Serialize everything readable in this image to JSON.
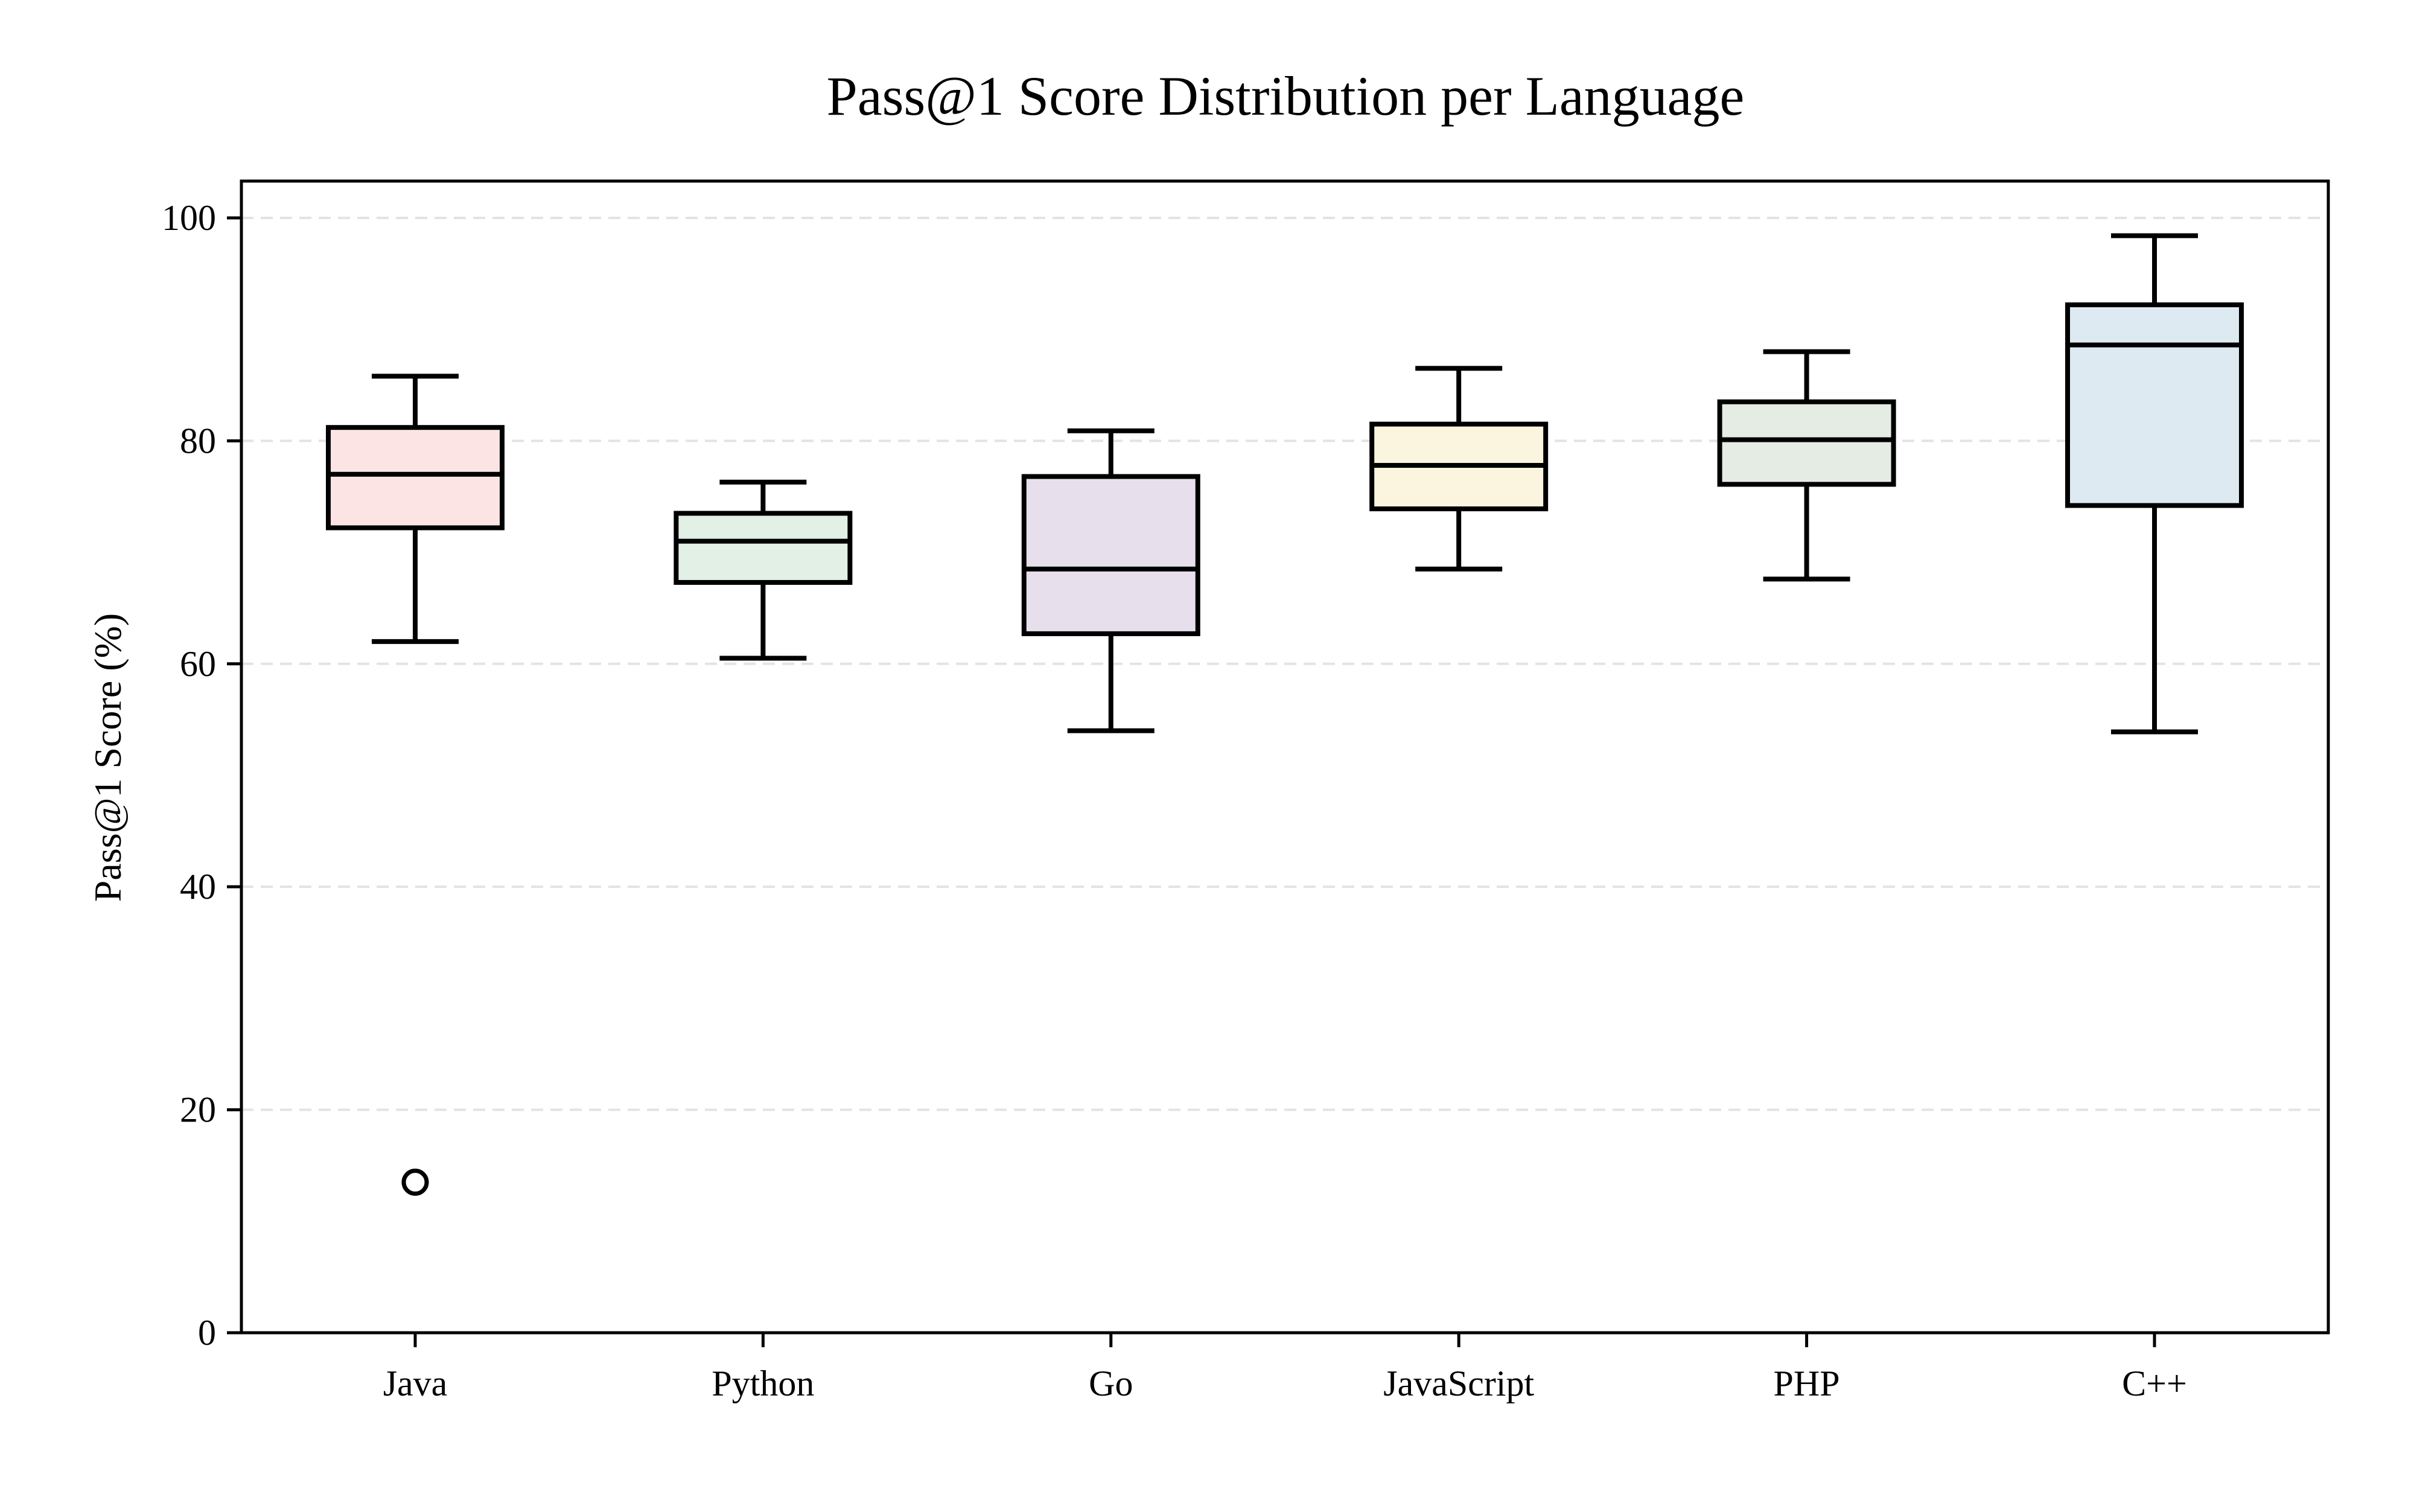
{
  "chart_data": {
    "type": "box",
    "title": "Pass@1 Score Distribution per Language",
    "xlabel": "",
    "ylabel": "Pass@1 Score (%)",
    "ylim": [
      0,
      103.3
    ],
    "yticks": [
      0,
      20,
      40,
      60,
      80,
      100
    ],
    "grid": "y-dashed",
    "categories": [
      "Java",
      "Python",
      "Go",
      "JavaScript",
      "PHP",
      "C++"
    ],
    "boxes": [
      {
        "category": "Java",
        "whisker_low": 62.0,
        "q1": 72.2,
        "median": 77.0,
        "q3": 81.2,
        "whisker_high": 85.8,
        "outliers": [
          13.5
        ],
        "color": "#fce4e4"
      },
      {
        "category": "Python",
        "whisker_low": 60.5,
        "q1": 67.3,
        "median": 71.0,
        "q3": 73.5,
        "whisker_high": 76.3,
        "outliers": [],
        "color": "#e2f0e6"
      },
      {
        "category": "Go",
        "whisker_low": 54.0,
        "q1": 62.7,
        "median": 68.5,
        "q3": 76.8,
        "whisker_high": 80.9,
        "outliers": [],
        "color": "#e8dfec"
      },
      {
        "category": "JavaScript",
        "whisker_low": 68.5,
        "q1": 73.9,
        "median": 77.8,
        "q3": 81.5,
        "whisker_high": 86.5,
        "outliers": [],
        "color": "#fbf4df"
      },
      {
        "category": "PHP",
        "whisker_low": 67.6,
        "q1": 76.1,
        "median": 80.1,
        "q3": 83.5,
        "whisker_high": 88.0,
        "outliers": [],
        "color": "#e5ece4"
      },
      {
        "category": "C++",
        "whisker_low": 53.9,
        "q1": 74.2,
        "median": 88.6,
        "q3": 92.2,
        "whisker_high": 98.4,
        "outliers": [],
        "color": "#deeaf2"
      }
    ]
  }
}
